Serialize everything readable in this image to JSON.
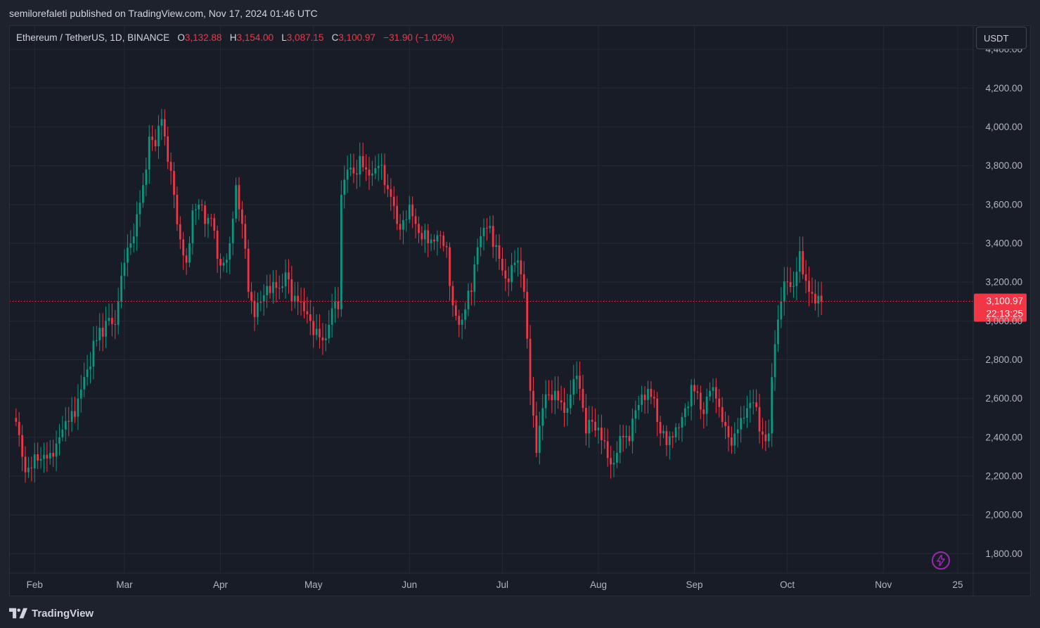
{
  "publish_line": "semilorefaleti published on TradingView.com, Nov 17, 2024 01:46 UTC",
  "legend": {
    "symbol": "Ethereum / TetherUS, 1D, BINANCE",
    "o_label": "O",
    "open": "3,132.88",
    "h_label": "H",
    "high": "3,154.00",
    "l_label": "L",
    "low": "3,087.15",
    "c_label": "C",
    "close": "3,100.97",
    "change": "−31.90 (−1.02%)"
  },
  "currency_button": "USDT",
  "price_tag": {
    "price": "3,100.97",
    "countdown": "22:13:25"
  },
  "brand": "TradingView",
  "colors": {
    "up": "#089981",
    "down": "#f23645",
    "bg": "#181c26",
    "grid": "#262a35",
    "accent": "#9c27b0"
  },
  "icons": [
    "tradingview-logo-icon",
    "lightning-icon"
  ],
  "chart_data": {
    "type": "candlestick",
    "interval": "1D",
    "ylim": [
      1700,
      4520
    ],
    "y_ticks": [
      1800,
      2000,
      2200,
      2400,
      2600,
      2800,
      3000,
      3200,
      3400,
      3600,
      3800,
      4000,
      4200,
      4400
    ],
    "y_tick_labels": [
      "1,800.00",
      "2,000.00",
      "2,200.00",
      "2,400.00",
      "2,600.00",
      "2,800.00",
      "3,000.00",
      "3,200.00",
      "3,400.00",
      "3,600.00",
      "3,800.00",
      "4,000.00",
      "4,200.00",
      "4,400.00"
    ],
    "x_ticks": [
      {
        "label": "Feb",
        "day": 19
      },
      {
        "label": "Mar",
        "day": 48
      },
      {
        "label": "Apr",
        "day": 79
      },
      {
        "label": "May",
        "day": 109
      },
      {
        "label": "Jun",
        "day": 140
      },
      {
        "label": "Jul",
        "day": 170
      },
      {
        "label": "Aug",
        "day": 201
      },
      {
        "label": "Sep",
        "day": 232
      },
      {
        "label": "Oct",
        "day": 262
      },
      {
        "label": "Nov",
        "day": 293
      },
      {
        "label": "25",
        "day": 317
      }
    ],
    "day_domain": [
      11,
      322
    ],
    "last_price": 3100.97,
    "grid": true,
    "anchors": [
      [
        13,
        2480
      ],
      [
        15,
        2300
      ],
      [
        16,
        2220
      ],
      [
        18,
        2240
      ],
      [
        20,
        2280
      ],
      [
        22,
        2310
      ],
      [
        24,
        2320
      ],
      [
        25,
        2300
      ],
      [
        27,
        2400
      ],
      [
        30,
        2480
      ],
      [
        33,
        2600
      ],
      [
        36,
        2750
      ],
      [
        39,
        2900
      ],
      [
        42,
        3000
      ],
      [
        45,
        2980
      ],
      [
        46,
        3100
      ],
      [
        48,
        3300
      ],
      [
        50,
        3400
      ],
      [
        52,
        3550
      ],
      [
        54,
        3700
      ],
      [
        56,
        3950
      ],
      [
        58,
        3900
      ],
      [
        60,
        4040
      ],
      [
        62,
        3820
      ],
      [
        64,
        3650
      ],
      [
        66,
        3420
      ],
      [
        68,
        3300
      ],
      [
        70,
        3570
      ],
      [
        72,
        3600
      ],
      [
        74,
        3500
      ],
      [
        76,
        3530
      ],
      [
        78,
        3320
      ],
      [
        80,
        3300
      ],
      [
        82,
        3400
      ],
      [
        84,
        3700
      ],
      [
        86,
        3500
      ],
      [
        88,
        3150
      ],
      [
        90,
        3020
      ],
      [
        92,
        3100
      ],
      [
        94,
        3180
      ],
      [
        96,
        3200
      ],
      [
        98,
        3170
      ],
      [
        100,
        3250
      ],
      [
        102,
        3100
      ],
      [
        104,
        3100
      ],
      [
        106,
        3050
      ],
      [
        108,
        3000
      ],
      [
        110,
        2960
      ],
      [
        112,
        2900
      ],
      [
        114,
        2980
      ],
      [
        116,
        3100
      ],
      [
        117,
        3060
      ],
      [
        118,
        3650
      ],
      [
        120,
        3780
      ],
      [
        122,
        3760
      ],
      [
        124,
        3850
      ],
      [
        126,
        3780
      ],
      [
        128,
        3760
      ],
      [
        130,
        3800
      ],
      [
        132,
        3700
      ],
      [
        134,
        3640
      ],
      [
        136,
        3500
      ],
      [
        138,
        3520
      ],
      [
        140,
        3600
      ],
      [
        142,
        3500
      ],
      [
        144,
        3420
      ],
      [
        146,
        3400
      ],
      [
        148,
        3410
      ],
      [
        150,
        3440
      ],
      [
        152,
        3380
      ],
      [
        154,
        3080
      ],
      [
        156,
        2980
      ],
      [
        158,
        3060
      ],
      [
        160,
        3150
      ],
      [
        162,
        3380
      ],
      [
        164,
        3480
      ],
      [
        166,
        3490
      ],
      [
        168,
        3390
      ],
      [
        170,
        3260
      ],
      [
        172,
        3200
      ],
      [
        174,
        3300
      ],
      [
        176,
        3240
      ],
      [
        177,
        3150
      ],
      [
        179,
        2640
      ],
      [
        181,
        2320
      ],
      [
        183,
        2550
      ],
      [
        185,
        2620
      ],
      [
        187,
        2640
      ],
      [
        189,
        2580
      ],
      [
        191,
        2550
      ],
      [
        193,
        2700
      ],
      [
        195,
        2650
      ],
      [
        197,
        2420
      ],
      [
        199,
        2480
      ],
      [
        201,
        2450
      ],
      [
        203,
        2380
      ],
      [
        205,
        2260
      ],
      [
        207,
        2320
      ],
      [
        209,
        2400
      ],
      [
        211,
        2380
      ],
      [
        213,
        2540
      ],
      [
        215,
        2620
      ],
      [
        217,
        2650
      ],
      [
        219,
        2600
      ],
      [
        221,
        2420
      ],
      [
        223,
        2360
      ],
      [
        225,
        2400
      ],
      [
        227,
        2450
      ],
      [
        229,
        2550
      ],
      [
        231,
        2670
      ],
      [
        233,
        2630
      ],
      [
        235,
        2520
      ],
      [
        237,
        2640
      ],
      [
        239,
        2600
      ],
      [
        241,
        2480
      ],
      [
        243,
        2400
      ],
      [
        245,
        2420
      ],
      [
        247,
        2500
      ],
      [
        249,
        2550
      ],
      [
        251,
        2580
      ],
      [
        253,
        2430
      ],
      [
        255,
        2380
      ],
      [
        256,
        2420
      ],
      [
        257,
        2710
      ],
      [
        258,
        2880
      ],
      [
        260,
        3100
      ],
      [
        262,
        3200
      ],
      [
        264,
        3180
      ],
      [
        266,
        3360
      ],
      [
        267,
        3240
      ],
      [
        269,
        3150
      ],
      [
        271,
        3090
      ],
      [
        272,
        3130
      ],
      [
        273,
        3100.97
      ]
    ]
  }
}
